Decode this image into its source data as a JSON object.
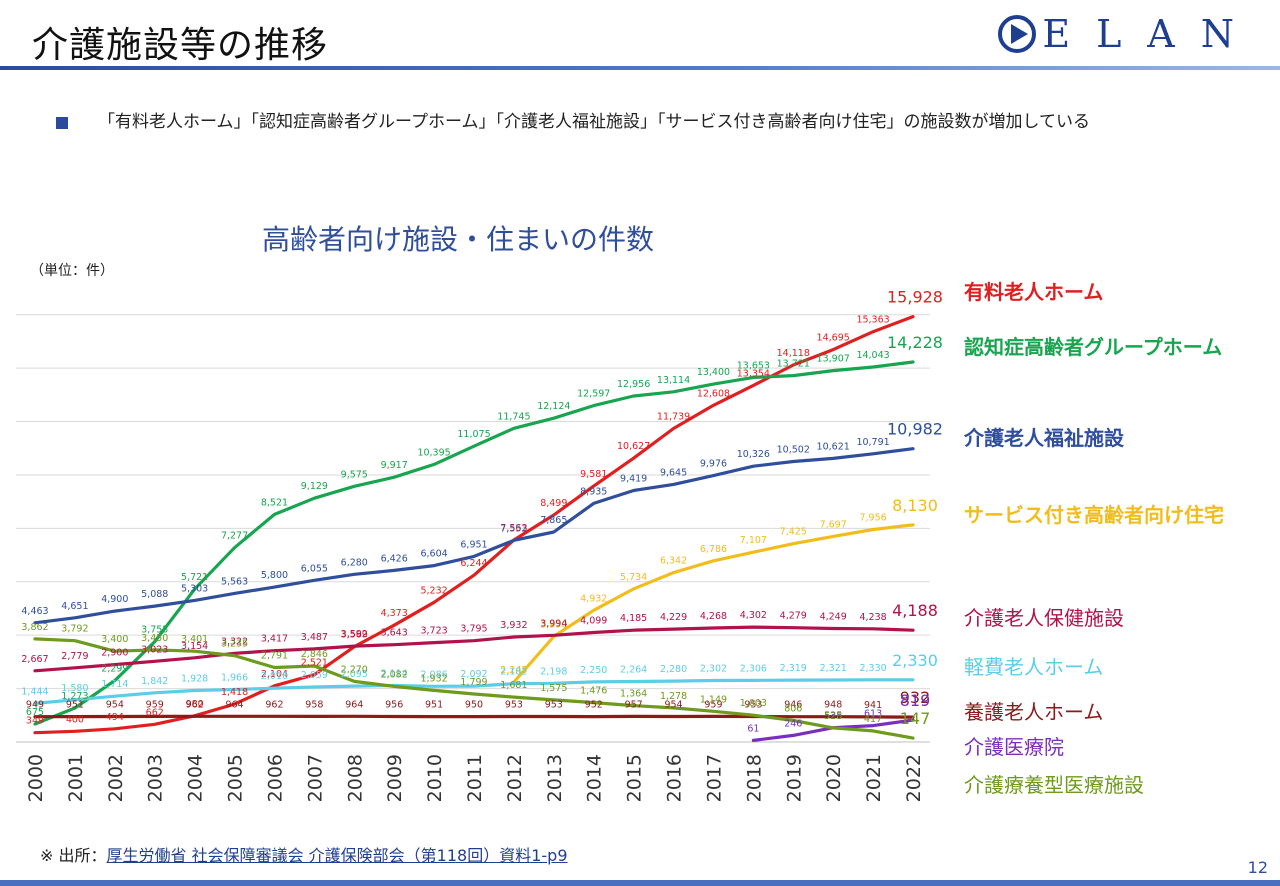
{
  "slide": {
    "title": "介護施設等の推移",
    "logo_text": "ELAN",
    "bullet_text": "「有料老人ホーム」「認知症高齢者グループホーム」「介護老人福祉施設」「サービス付き高齢者向け住宅」の施設数が増加している",
    "source_prefix": "※ 出所：",
    "source_link": "厚生労働省 社会保障審議会 介護保険部会（第118回）資料1-p9",
    "page_number": "12"
  },
  "chart_data": {
    "type": "line",
    "title": "高齢者向け施設・住まいの件数",
    "unit_label": "（単位：件）",
    "xlabel": "",
    "ylabel": "",
    "ylim": [
      0,
      17000
    ],
    "grid": true,
    "legend": "right",
    "categories": [
      "2000",
      "2001",
      "2002",
      "2003",
      "2004",
      "2005",
      "2006",
      "2007",
      "2008",
      "2009",
      "2010",
      "2011",
      "2012",
      "2013",
      "2014",
      "2015",
      "2016",
      "2017",
      "2018",
      "2019",
      "2020",
      "2021",
      "2022"
    ],
    "series": [
      {
        "name": "有料老人ホーム",
        "color": "#e02020",
        "bold": true,
        "values": [
          349,
          400,
          494,
          662,
          980,
          1418,
          2104,
          2521,
          3569,
          4373,
          5232,
          6244,
          7563,
          8499,
          9581,
          10627,
          11739,
          12608,
          13354,
          14118,
          14695,
          15363,
          15928
        ]
      },
      {
        "name": "認知症高齢者グループホーム",
        "color": "#18a550",
        "bold": true,
        "values": [
          675,
          1273,
          2299,
          3755,
          5721,
          7277,
          8521,
          9129,
          9575,
          9917,
          10395,
          11075,
          11745,
          12124,
          12597,
          12956,
          13114,
          13400,
          13653,
          13721,
          13907,
          14043,
          14228
        ]
      },
      {
        "name": "介護老人福祉施設",
        "color": "#2f4e9b",
        "bold": true,
        "values": [
          4463,
          4651,
          4900,
          5088,
          5303,
          5563,
          5800,
          6055,
          6280,
          6426,
          6604,
          6951,
          7552,
          7865,
          8935,
          9419,
          9645,
          9976,
          10326,
          10502,
          10621,
          10791,
          10982
        ]
      },
      {
        "name": "サービス付き高齢者向け住宅",
        "color": "#f2bd1a",
        "bold": true,
        "values": [
          null,
          null,
          null,
          null,
          null,
          null,
          null,
          null,
          null,
          null,
          null,
          null,
          2245,
          3950,
          4932,
          5734,
          6342,
          6786,
          7107,
          7425,
          7697,
          7956,
          8130
        ]
      },
      {
        "name": "介護老人保健施設",
        "color": "#b1124b",
        "bold": false,
        "values": [
          2667,
          2779,
          2900,
          3023,
          3154,
          3322,
          3417,
          3487,
          3592,
          3643,
          3723,
          3795,
          3932,
          3994,
          4099,
          4185,
          4229,
          4268,
          4302,
          4279,
          4249,
          4238,
          4188
        ]
      },
      {
        "name": "軽費老人ホーム",
        "color": "#5ccde8",
        "bold": false,
        "values": [
          1444,
          1580,
          1714,
          1842,
          1928,
          1966,
          2016,
          2059,
          2095,
          2114,
          2086,
          2092,
          2182,
          2198,
          2250,
          2264,
          2280,
          2302,
          2306,
          2319,
          2321,
          2330,
          2330
        ]
      },
      {
        "name": "養護老人ホーム",
        "color": "#8b1a1a",
        "bold": false,
        "values": [
          949,
          951,
          954,
          959,
          962,
          964,
          962,
          958,
          964,
          956,
          951,
          950,
          953,
          953,
          952,
          957,
          954,
          959,
          953,
          946,
          948,
          941,
          932
        ]
      },
      {
        "name": "介護医療院",
        "color": "#7a2dbf",
        "bold": false,
        "values": [
          null,
          null,
          null,
          null,
          null,
          null,
          null,
          null,
          null,
          null,
          null,
          null,
          null,
          null,
          null,
          null,
          null,
          null,
          61,
          246,
          535,
          613,
          819
        ]
      },
      {
        "name": "介護療養型医療施設",
        "color": "#6e9a1e",
        "bold": false,
        "values": [
          3862,
          3792,
          3400,
          3450,
          3401,
          3235,
          2791,
          2846,
          2270,
          2082,
          1932,
          1799,
          1681,
          1575,
          1476,
          1364,
          1278,
          1149,
          1003,
          806,
          528,
          417,
          147
        ]
      }
    ]
  }
}
